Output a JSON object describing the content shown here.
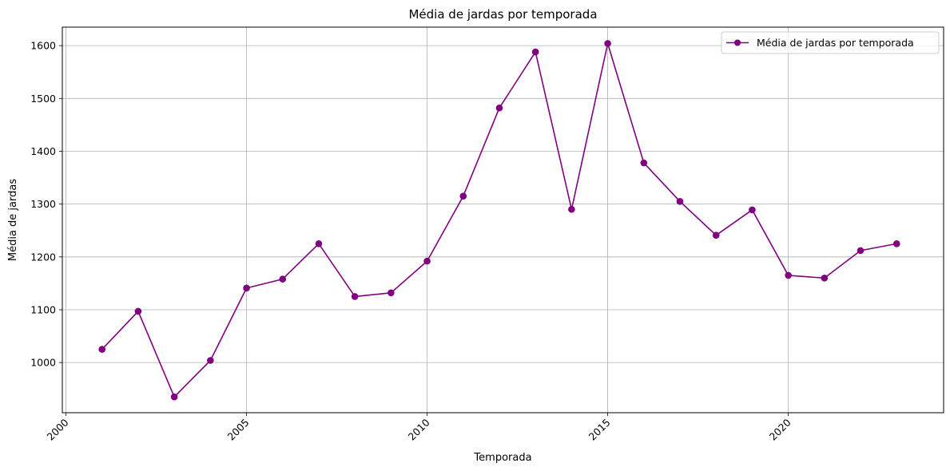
{
  "chart_data": {
    "type": "line",
    "title": "Média de jardas por temporada",
    "xlabel": "Temporada",
    "ylabel": "Média de jardas",
    "xlim": [
      1999.9,
      2024.3
    ],
    "ylim": [
      905,
      1635
    ],
    "xticks": [
      2000,
      2005,
      2010,
      2015,
      2020
    ],
    "yticks": [
      1000,
      1100,
      1200,
      1300,
      1400,
      1500,
      1600
    ],
    "grid": true,
    "legend_position": "top-right",
    "color": "#800080",
    "series": [
      {
        "name": "Média de jardas por temporada",
        "x": [
          2001,
          2002,
          2003,
          2004,
          2005,
          2006,
          2007,
          2008,
          2009,
          2010,
          2011,
          2012,
          2013,
          2014,
          2015,
          2016,
          2017,
          2018,
          2019,
          2020,
          2021,
          2022,
          2023
        ],
        "values": [
          1025,
          1097,
          935,
          1004,
          1141,
          1158,
          1225,
          1125,
          1132,
          1192,
          1315,
          1482,
          1588,
          1290,
          1604,
          1378,
          1305,
          1241,
          1289,
          1165,
          1160,
          1212,
          1225
        ]
      }
    ]
  }
}
